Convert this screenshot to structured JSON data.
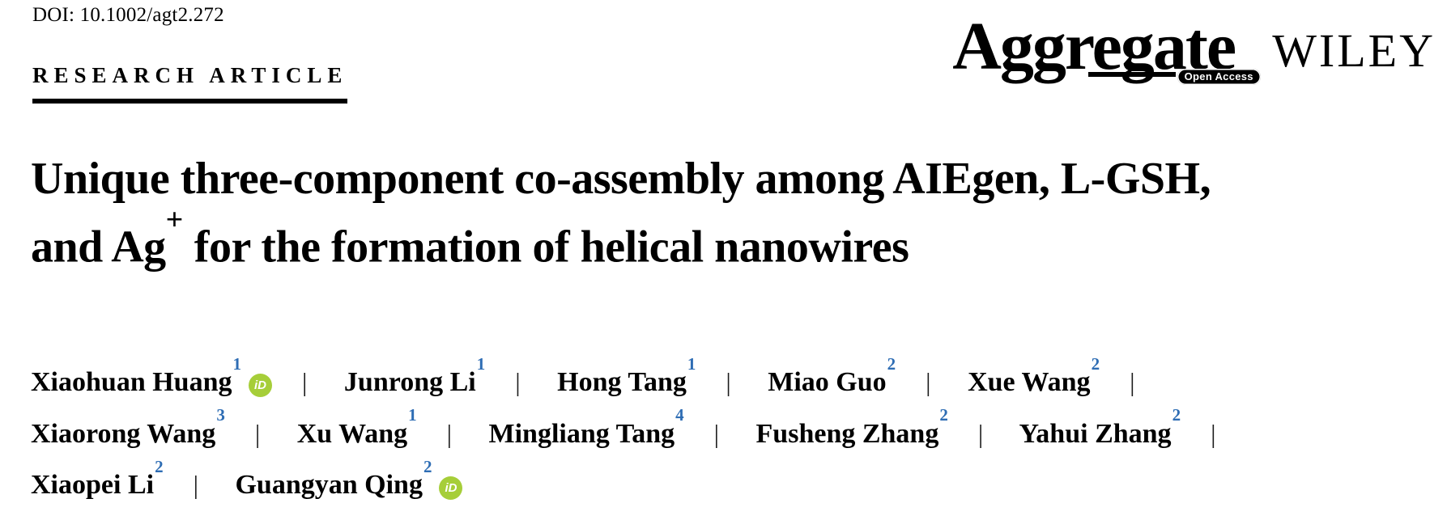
{
  "header": {
    "doi": "DOI: 10.1002/agt2.272",
    "article_type": "RESEARCH ARTICLE"
  },
  "branding": {
    "journal_name": "Aggregate",
    "open_access_label": "Open Access",
    "publisher_name": "WILEY"
  },
  "title": {
    "line1": "Unique three-component co-assembly among AIEgen, L-GSH,",
    "line2_prefix": "and Ag",
    "line2_superscript": "+",
    "line2_suffix": " for the formation of helical nanowires"
  },
  "authors": {
    "separator": "|",
    "list": [
      {
        "name": "Xiaohuan Huang",
        "affiliation": "1",
        "orcid": true
      },
      {
        "name": "Junrong Li",
        "affiliation": "1",
        "orcid": false
      },
      {
        "name": "Hong Tang",
        "affiliation": "1",
        "orcid": false
      },
      {
        "name": "Miao Guo",
        "affiliation": "2",
        "orcid": false
      },
      {
        "name": "Xue Wang",
        "affiliation": "2",
        "orcid": false
      },
      {
        "name": "Xiaorong Wang",
        "affiliation": "3",
        "orcid": false
      },
      {
        "name": "Xu Wang",
        "affiliation": "1",
        "orcid": false
      },
      {
        "name": "Mingliang Tang",
        "affiliation": "4",
        "orcid": false
      },
      {
        "name": "Fusheng Zhang",
        "affiliation": "2",
        "orcid": false
      },
      {
        "name": "Yahui Zhang",
        "affiliation": "2",
        "orcid": false
      },
      {
        "name": "Xiaopei Li",
        "affiliation": "2",
        "orcid": false
      },
      {
        "name": "Guangyan Qing",
        "affiliation": "2",
        "orcid": true
      }
    ]
  },
  "icons": {
    "orcid_text": "iD"
  },
  "colors": {
    "text": "#000000",
    "affiliation_superscript_blue": "#2e6db4",
    "orcid_green": "#a6ce39",
    "open_access_badge_background": "#000000"
  }
}
